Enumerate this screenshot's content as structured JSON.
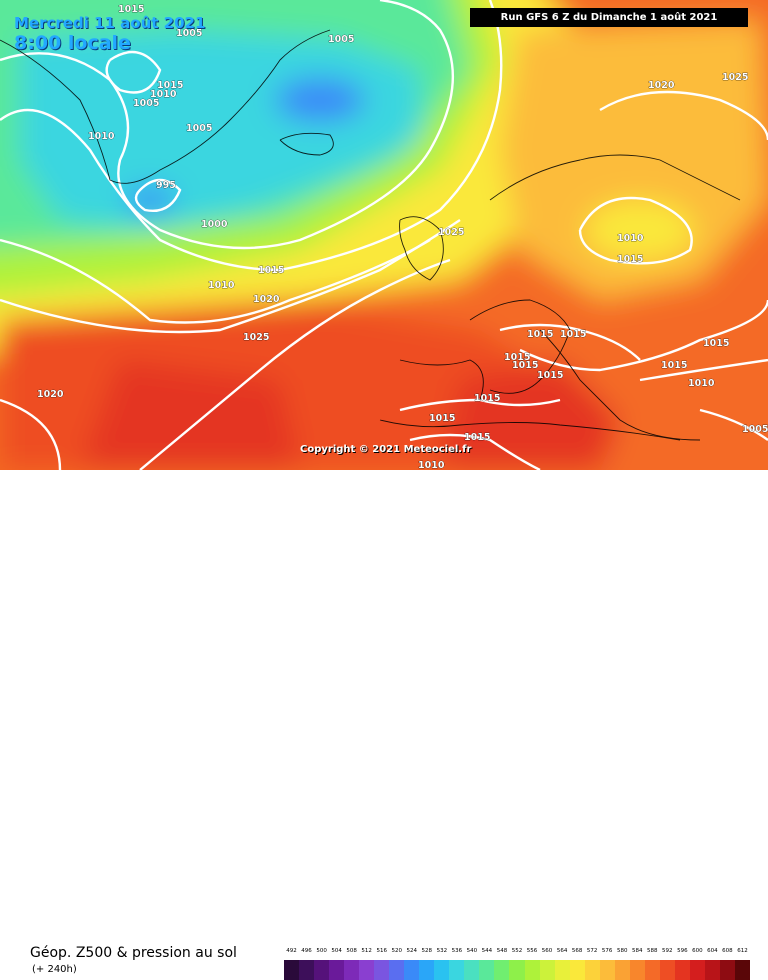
{
  "header": {
    "date_line": "Mercredi 11 août 2021",
    "time_line": "8:00 locale",
    "run_info": "Run GFS 6 Z du Dimanche 1 août 2021"
  },
  "watermark": "Copyright © 2021 Meteociel.fr",
  "footer": {
    "title": "Géop. Z500 & pression au sol",
    "subtitle": "(+ 240h)"
  },
  "legend": {
    "values": [
      "492",
      "496",
      "500",
      "504",
      "508",
      "512",
      "516",
      "520",
      "524",
      "528",
      "532",
      "536",
      "540",
      "544",
      "548",
      "552",
      "556",
      "560",
      "564",
      "568",
      "572",
      "576",
      "580",
      "584",
      "588",
      "592",
      "596",
      "600",
      "604",
      "608",
      "612"
    ],
    "colors": [
      "#2a0a3a",
      "#3d0f5a",
      "#55127a",
      "#6a1a9a",
      "#7d2ab8",
      "#8a3fd0",
      "#7a55e0",
      "#5a6ef0",
      "#3a8af8",
      "#2aa6f8",
      "#2ac2f0",
      "#3ad6e0",
      "#4ae0c0",
      "#5ae89a",
      "#70ee70",
      "#8ef04a",
      "#aef23a",
      "#ccf23a",
      "#e8f03a",
      "#fae83a",
      "#fcd23a",
      "#fcbc3a",
      "#faa234",
      "#f8862c",
      "#f46a28",
      "#ee4e24",
      "#e43420",
      "#d41e1e",
      "#b81418",
      "#8e0c12",
      "#5a0608"
    ]
  },
  "map_labels": [
    {
      "id": "1015-a",
      "text": "1015"
    },
    {
      "id": "1005-a",
      "text": "1005"
    },
    {
      "id": "1005-b",
      "text": "1005"
    },
    {
      "id": "1015-b",
      "text": "1015"
    },
    {
      "id": "1010-greenland",
      "text": "1010"
    },
    {
      "id": "1005-c",
      "text": "1005"
    },
    {
      "id": "1005-d",
      "text": "1005"
    },
    {
      "id": "1010-a",
      "text": "1010"
    },
    {
      "id": "995",
      "text": "995"
    },
    {
      "id": "1000",
      "text": "1000"
    },
    {
      "id": "1025-a",
      "text": "1025"
    },
    {
      "id": "1020-a",
      "text": "1020"
    },
    {
      "id": "1025-b",
      "text": "1025"
    },
    {
      "id": "1010-b",
      "text": "1010"
    },
    {
      "id": "1015-c",
      "text": "1015"
    },
    {
      "id": "1015-d",
      "text": "1015"
    },
    {
      "id": "1010-c",
      "text": "1010"
    },
    {
      "id": "1020-b",
      "text": "1020"
    },
    {
      "id": "1025-c",
      "text": "1025"
    },
    {
      "id": "1020-c",
      "text": "1020"
    },
    {
      "id": "1015-e",
      "text": "1015"
    },
    {
      "id": "1015-f",
      "text": "1015"
    },
    {
      "id": "1015-g",
      "text": "1015"
    },
    {
      "id": "1015-h",
      "text": "1015"
    },
    {
      "id": "1015-i",
      "text": "1015"
    },
    {
      "id": "1015-j",
      "text": "1015"
    },
    {
      "id": "1015-k",
      "text": "1015"
    },
    {
      "id": "1015-l",
      "text": "1015"
    },
    {
      "id": "1015-m",
      "text": "1015"
    },
    {
      "id": "1015-n",
      "text": "1015"
    },
    {
      "id": "1010-d",
      "text": "1010"
    },
    {
      "id": "1005-e",
      "text": "1005"
    },
    {
      "id": "1010-e",
      "text": "1010"
    }
  ]
}
